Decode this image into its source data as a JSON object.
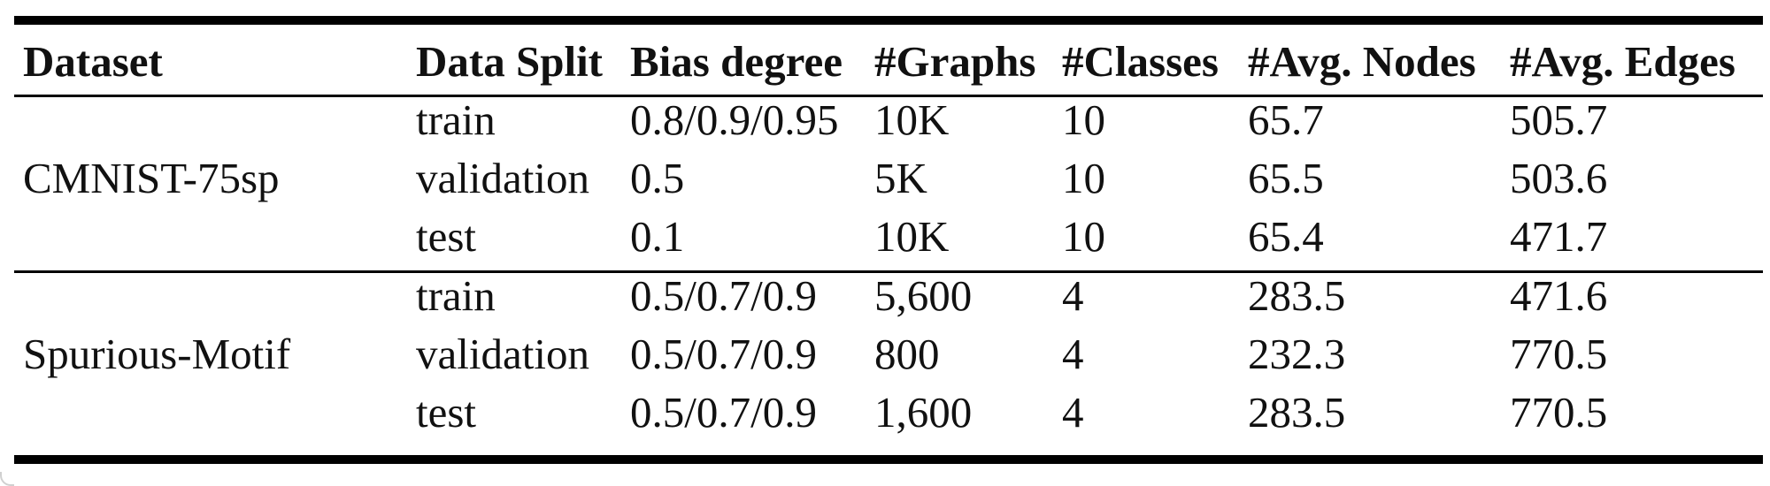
{
  "table": {
    "headers": [
      "Dataset",
      "Data Split",
      "Bias degree",
      "#Graphs",
      "#Classes",
      "#Avg. Nodes",
      "#Avg. Edges"
    ],
    "groups": [
      {
        "dataset": "CMNIST-75sp",
        "rows": [
          [
            "train",
            "0.8/0.9/0.95",
            "10K",
            "10",
            "65.7",
            "505.7"
          ],
          [
            "validation",
            "0.5",
            "5K",
            "10",
            "65.5",
            "503.6"
          ],
          [
            "test",
            "0.1",
            "10K",
            "10",
            "65.4",
            "471.7"
          ]
        ]
      },
      {
        "dataset": "Spurious-Motif",
        "rows": [
          [
            "train",
            "0.5/0.7/0.9",
            "5,600",
            "4",
            "283.5",
            "471.6"
          ],
          [
            "validation",
            "0.5/0.7/0.9",
            "800",
            "4",
            "232.3",
            "770.5"
          ],
          [
            "test",
            "0.5/0.7/0.9",
            "1,600",
            "4",
            "283.5",
            "770.5"
          ]
        ]
      }
    ]
  }
}
